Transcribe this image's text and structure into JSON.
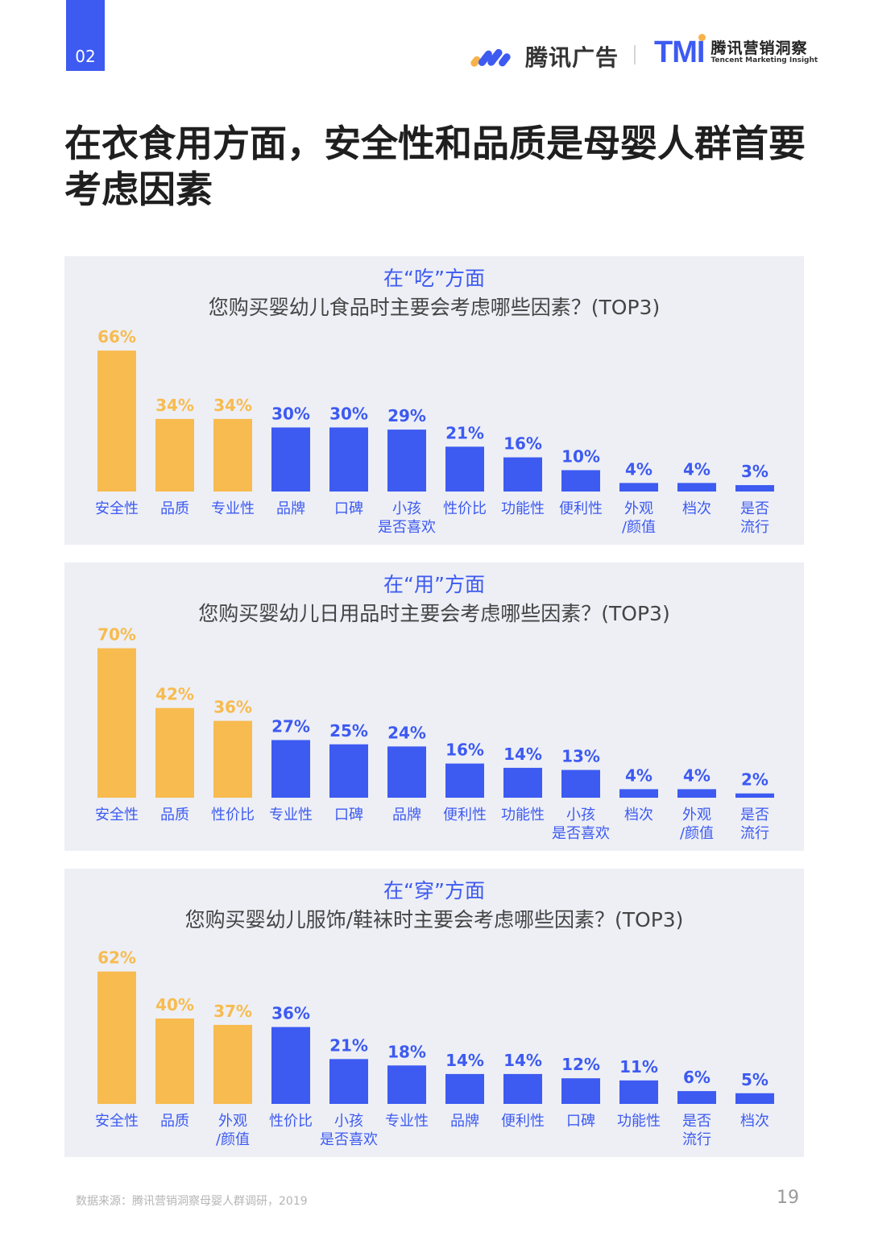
{
  "header": {
    "page_tab": "02",
    "logo_tencent_ads": "腾讯广告",
    "logo_tmi_mark": "TMI",
    "logo_tmi_cn": "腾讯营销洞察",
    "logo_tmi_en": "Tencent Marketing Insight"
  },
  "title": "在衣食用方面，安全性和品质是母婴人群首要考虑因素",
  "colors": {
    "highlight": "#f8bb4f",
    "normal": "#3d5af1",
    "panel_bg": "#edeff5"
  },
  "panels": [
    {
      "title": "在“吃”方面",
      "question": "您购买婴幼儿食品时主要会考虑哪些因素？(TOP3)"
    },
    {
      "title": "在“用”方面",
      "question": "您购买婴幼儿日用品时主要会考虑哪些因素？(TOP3)"
    },
    {
      "title": "在“穿”方面",
      "question": "您购买婴幼儿服饰/鞋袜时主要会考虑哪些因素？(TOP3)"
    }
  ],
  "chart_data": [
    {
      "type": "bar",
      "title": "在“吃”方面",
      "subtitle": "您购买婴幼儿食品时主要会考虑哪些因素？(TOP3)",
      "categories": [
        "安全性",
        "品质",
        "专业性",
        "品牌",
        "口碑",
        "小孩\n是否喜欢",
        "性价比",
        "功能性",
        "便利性",
        "外观\n/颜值",
        "档次",
        "是否\n流行"
      ],
      "values": [
        66,
        34,
        34,
        30,
        30,
        29,
        21,
        16,
        10,
        4,
        4,
        3
      ],
      "value_labels": [
        "66%",
        "34%",
        "34%",
        "30%",
        "30%",
        "29%",
        "21%",
        "16%",
        "10%",
        "4%",
        "4%",
        "3%"
      ],
      "highlight_count": 3,
      "unit": "%"
    },
    {
      "type": "bar",
      "title": "在“用”方面",
      "subtitle": "您购买婴幼儿日用品时主要会考虑哪些因素？(TOP3)",
      "categories": [
        "安全性",
        "品质",
        "性价比",
        "专业性",
        "口碑",
        "品牌",
        "便利性",
        "功能性",
        "小孩\n是否喜欢",
        "档次",
        "外观\n/颜值",
        "是否\n流行"
      ],
      "values": [
        70,
        42,
        36,
        27,
        25,
        24,
        16,
        14,
        13,
        4,
        4,
        2
      ],
      "value_labels": [
        "70%",
        "42%",
        "36%",
        "27%",
        "25%",
        "24%",
        "16%",
        "14%",
        "13%",
        "4%",
        "4%",
        "2%"
      ],
      "highlight_count": 3,
      "unit": "%"
    },
    {
      "type": "bar",
      "title": "在“穿”方面",
      "subtitle": "您购买婴幼儿服饰/鞋袜时主要会考虑哪些因素？(TOP3)",
      "categories": [
        "安全性",
        "品质",
        "外观\n/颜值",
        "性价比",
        "小孩\n是否喜欢",
        "专业性",
        "品牌",
        "便利性",
        "口碑",
        "功能性",
        "是否\n流行",
        "档次"
      ],
      "values": [
        62,
        40,
        37,
        36,
        21,
        18,
        14,
        14,
        12,
        11,
        6,
        5
      ],
      "value_labels": [
        "62%",
        "40%",
        "37%",
        "36%",
        "21%",
        "18%",
        "14%",
        "14%",
        "12%",
        "11%",
        "6%",
        "5%"
      ],
      "highlight_count": 3,
      "unit": "%"
    }
  ],
  "footer": {
    "source": "数据来源：腾讯营销洞察母婴人群调研，2019",
    "page_number": "19"
  }
}
